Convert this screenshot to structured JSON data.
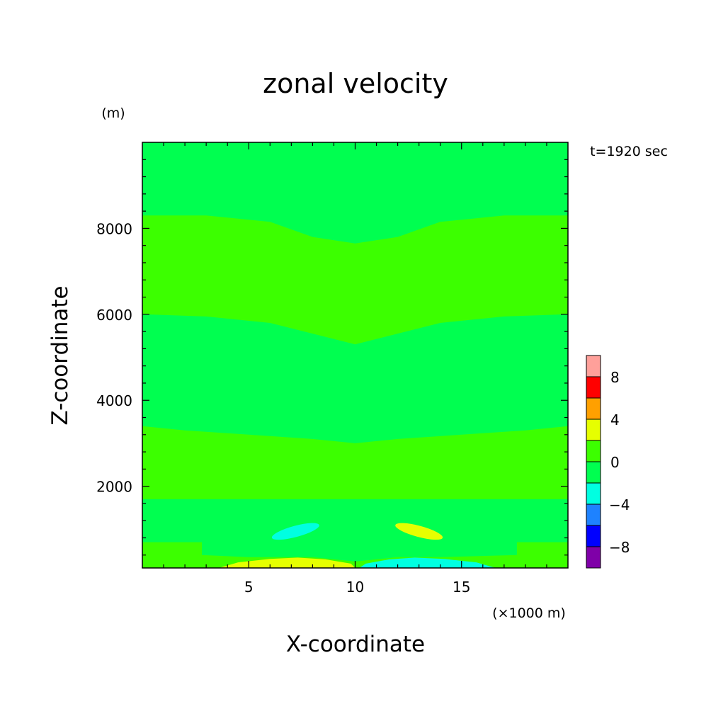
{
  "chart_data": {
    "type": "heatmap",
    "title": "zonal velocity",
    "xlabel": "X-coordinate",
    "ylabel": "Z-coordinate",
    "y_unit": "(m)",
    "x_unit": "(×1000 m)",
    "time_label": "t=1920 sec",
    "xlim": [
      0,
      20
    ],
    "ylim": [
      100,
      10000
    ],
    "x_ticks": [
      "5",
      "10",
      "15"
    ],
    "y_ticks": [
      "2000",
      "4000",
      "6000",
      "8000"
    ],
    "x_tick_values": [
      5,
      10,
      15
    ],
    "y_tick_values": [
      2000,
      4000,
      6000,
      8000
    ],
    "colorbar": {
      "levels": [
        -10,
        -8,
        -6,
        -4,
        -2,
        0,
        2,
        4,
        6,
        8,
        10
      ],
      "labels": [
        "8",
        "4",
        "0",
        "−4",
        "−8"
      ],
      "label_values": [
        8,
        4,
        0,
        -4,
        -8
      ],
      "colors": [
        "#7f00a8",
        "#0000ff",
        "#1e82ff",
        "#00ffe1",
        "#00ff50",
        "#3cff00",
        "#e6ff00",
        "#ffa000",
        "#ff0000",
        "#ffa09a"
      ]
    },
    "regions": [
      {
        "name": "background",
        "value_range": [
          0,
          2
        ],
        "color": "#3cff00"
      },
      {
        "name": "upper-band-left",
        "value_range": [
          -2,
          0
        ],
        "color": "#00ff50",
        "points": [
          [
            0,
            10000
          ],
          [
            10,
            10000
          ],
          [
            10,
            7650
          ],
          [
            8,
            7800
          ],
          [
            6,
            8150
          ],
          [
            3,
            8300
          ],
          [
            0,
            8300
          ]
        ]
      },
      {
        "name": "upper-band-right",
        "value_range": [
          -2,
          0
        ],
        "color": "#00ff50",
        "points": [
          [
            10,
            10000
          ],
          [
            20,
            10000
          ],
          [
            20,
            8300
          ],
          [
            17,
            8300
          ],
          [
            14,
            8150
          ],
          [
            12,
            7800
          ],
          [
            10,
            7650
          ]
        ]
      },
      {
        "name": "middle-band-left",
        "value_range": [
          -2,
          0
        ],
        "color": "#00ff50",
        "points": [
          [
            0,
            6000
          ],
          [
            3,
            5950
          ],
          [
            6,
            5800
          ],
          [
            8,
            5550
          ],
          [
            10,
            5300
          ],
          [
            10,
            3000
          ],
          [
            8,
            3100
          ],
          [
            5,
            3200
          ],
          [
            2,
            3300
          ],
          [
            0,
            3400
          ]
        ]
      },
      {
        "name": "middle-band-right",
        "value_range": [
          -2,
          0
        ],
        "color": "#00ff50",
        "points": [
          [
            10,
            5300
          ],
          [
            12,
            5550
          ],
          [
            14,
            5800
          ],
          [
            17,
            5950
          ],
          [
            20,
            6000
          ],
          [
            20,
            3400
          ],
          [
            18,
            3300
          ],
          [
            15,
            3200
          ],
          [
            12,
            3100
          ],
          [
            10,
            3000
          ]
        ]
      },
      {
        "name": "lower-band",
        "value_range": [
          -2,
          0
        ],
        "color": "#00ff50",
        "points": [
          [
            0,
            1700
          ],
          [
            20,
            1700
          ],
          [
            20,
            700
          ],
          [
            17.6,
            700
          ],
          [
            17.6,
            400
          ],
          [
            14,
            350
          ],
          [
            12,
            350
          ],
          [
            10,
            250
          ],
          [
            8,
            350
          ],
          [
            5,
            350
          ],
          [
            2.8,
            400
          ],
          [
            2.8,
            700
          ],
          [
            0,
            700
          ]
        ]
      },
      {
        "name": "negative-cell",
        "value_range": [
          -4,
          -2
        ],
        "color": "#00ffe1",
        "center": [
          7.2,
          950
        ],
        "radii": [
          1.15,
          130
        ],
        "angle_deg": -15
      },
      {
        "name": "positive-cell",
        "value_range": [
          2,
          4
        ],
        "color": "#e6ff00",
        "center": [
          13.0,
          950
        ],
        "radii": [
          1.15,
          130
        ],
        "angle_deg": 15
      },
      {
        "name": "surface-positive",
        "value_range": [
          2,
          4
        ],
        "color": "#e6ff00",
        "points": [
          [
            3.6,
            100
          ],
          [
            4.5,
            230
          ],
          [
            6,
            310
          ],
          [
            7.3,
            340
          ],
          [
            8.6,
            300
          ],
          [
            9.8,
            200
          ],
          [
            10,
            100
          ]
        ]
      },
      {
        "name": "surface-negative",
        "value_range": [
          -4,
          -2
        ],
        "color": "#00ffe1",
        "points": [
          [
            10.2,
            100
          ],
          [
            10.5,
            200
          ],
          [
            11.6,
            300
          ],
          [
            12.8,
            340
          ],
          [
            14.2,
            310
          ],
          [
            15.7,
            230
          ],
          [
            16.6,
            100
          ]
        ]
      }
    ]
  }
}
